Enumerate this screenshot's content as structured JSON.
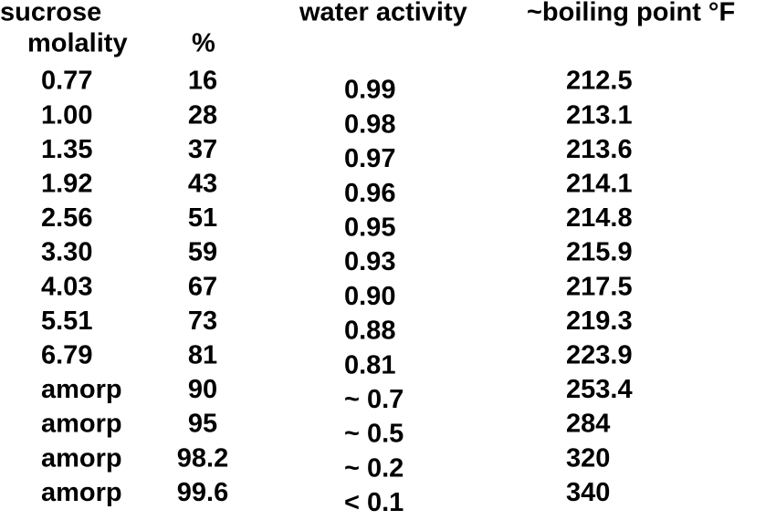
{
  "header": [
    "sucrose",
    "molality",
    "%",
    "water activity",
    "~boiling point °F"
  ],
  "table": {
    "rows": [
      [
        "0.77",
        "16",
        "0.99",
        "212.5"
      ],
      [
        "1.00",
        "28",
        "0.98",
        "213.1"
      ],
      [
        "1.35",
        "37",
        "0.97",
        "213.6"
      ],
      [
        "1.92",
        "43",
        "0.96",
        "214.1"
      ],
      [
        "2.56",
        "51",
        "0.95",
        "214.8"
      ],
      [
        "3.30",
        "59",
        "0.93",
        "215.9"
      ],
      [
        "4.03",
        "67",
        "0.90",
        "217.5"
      ],
      [
        "5.51",
        "73",
        "0.88",
        "219.3"
      ],
      [
        "6.79",
        "81",
        "0.81",
        "223.9"
      ],
      [
        "amorp",
        "90",
        "~ 0.7",
        "253.4"
      ],
      [
        "amorp",
        "95",
        "~ 0.5",
        "284"
      ],
      [
        "amorp",
        "98.2",
        "~ 0.2",
        "320"
      ],
      [
        "amorp",
        "99.6",
        "< 0.1",
        "340"
      ]
    ]
  }
}
